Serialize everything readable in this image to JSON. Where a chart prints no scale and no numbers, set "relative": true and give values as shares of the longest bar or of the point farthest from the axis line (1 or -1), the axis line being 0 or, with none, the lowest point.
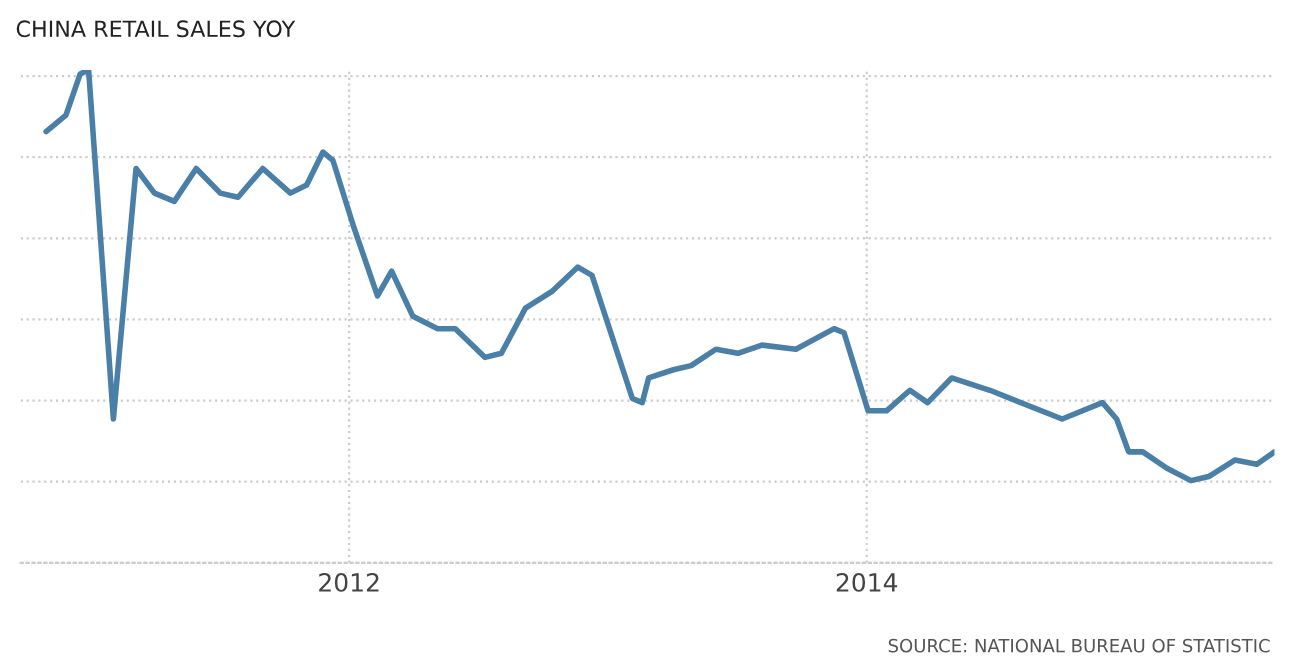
{
  "chart_data": {
    "type": "line",
    "title": "CHINA RETAIL SALES YOY",
    "annotations": [
      "SOURCE: NATIONAL BUREAU OF STATISTIC"
    ],
    "relative": true,
    "tick_labels": "x",
    "grid": true,
    "marker": "none",
    "line_style": "solid",
    "xlim": [
      "2010-09-24",
      "2015-07-31"
    ],
    "xticks": [
      "2012",
      "2014"
    ],
    "series": [
      {
        "color": "#4a7fa8",
        "x": [
          "2010-10-30",
          "2010-11-27",
          "2010-12-17",
          "2010-12-29",
          "2011-02-02",
          "2011-03-06",
          "2011-04-01",
          "2011-04-29",
          "2011-05-30",
          "2011-07-03",
          "2011-07-28",
          "2011-09-01",
          "2011-10-10",
          "2011-11-02",
          "2011-11-25",
          "2011-12-09",
          "2012-01-07",
          "2012-02-10",
          "2012-03-01",
          "2012-03-31",
          "2012-05-05",
          "2012-05-30",
          "2012-07-11",
          "2012-08-03",
          "2012-09-06",
          "2012-10-13",
          "2012-11-19",
          "2012-12-09",
          "2013-02-04",
          "2013-02-18",
          "2013-02-27",
          "2013-04-03",
          "2013-04-28",
          "2013-06-02",
          "2013-07-03",
          "2013-08-06",
          "2013-09-23",
          "2013-11-16",
          "2013-11-30",
          "2014-01-03",
          "2014-01-29",
          "2014-03-03",
          "2014-03-28",
          "2014-05-01",
          "2014-06-24",
          "2014-10-04",
          "2014-11-30",
          "2014-12-20",
          "2015-01-06",
          "2015-01-26",
          "2015-03-01",
          "2015-04-04",
          "2015-04-29",
          "2015-06-05",
          "2015-07-06",
          "2015-07-31"
        ],
        "values": [
          0.85,
          0.89,
          0.99,
          1,
          0.15,
          0.76,
          0.7,
          0.68,
          0.76,
          0.7,
          0.69,
          0.76,
          0.7,
          0.72,
          0.8,
          0.78,
          0.62,
          0.45,
          0.51,
          0.4,
          0.37,
          0.37,
          0.3,
          0.31,
          0.42,
          0.46,
          0.52,
          0.5,
          0.2,
          0.19,
          0.25,
          0.27,
          0.28,
          0.32,
          0.31,
          0.33,
          0.32,
          0.37,
          0.36,
          0.17,
          0.17,
          0.22,
          0.19,
          0.25,
          0.22,
          0.15,
          0.19,
          0.15,
          0.07,
          0.07,
          0.03,
          0,
          0.01,
          0.05,
          0.04,
          0.07
        ]
      }
    ]
  }
}
